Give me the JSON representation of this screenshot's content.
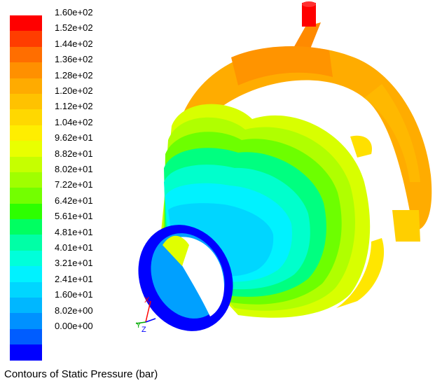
{
  "legend": {
    "colors": [
      "#ff0000",
      "#ff3d00",
      "#ff6e00",
      "#ff9000",
      "#ffab00",
      "#ffc200",
      "#ffd800",
      "#ffee00",
      "#e9ff00",
      "#c6ff00",
      "#a0ff00",
      "#73ff00",
      "#2dff00",
      "#00ff61",
      "#00ffa6",
      "#00ffda",
      "#00f2ff",
      "#00d6ff",
      "#00b7ff",
      "#0091ff",
      "#005dff",
      "#0000ff"
    ],
    "labels": [
      "1.60e+02",
      "1.52e+02",
      "1.44e+02",
      "1.36e+02",
      "1.28e+02",
      "1.20e+02",
      "1.12e+02",
      "1.04e+02",
      "9.62e+01",
      "8.82e+01",
      "8.02e+01",
      "7.22e+01",
      "6.42e+01",
      "5.61e+01",
      "4.81e+01",
      "4.01e+01",
      "3.21e+01",
      "2.41e+01",
      "1.60e+01",
      "8.02e+00",
      "0.00e+00"
    ]
  },
  "axes": {
    "x": "X",
    "y": "Y",
    "z": "Z"
  },
  "caption": "Contours of Static Pressure (bar)"
}
